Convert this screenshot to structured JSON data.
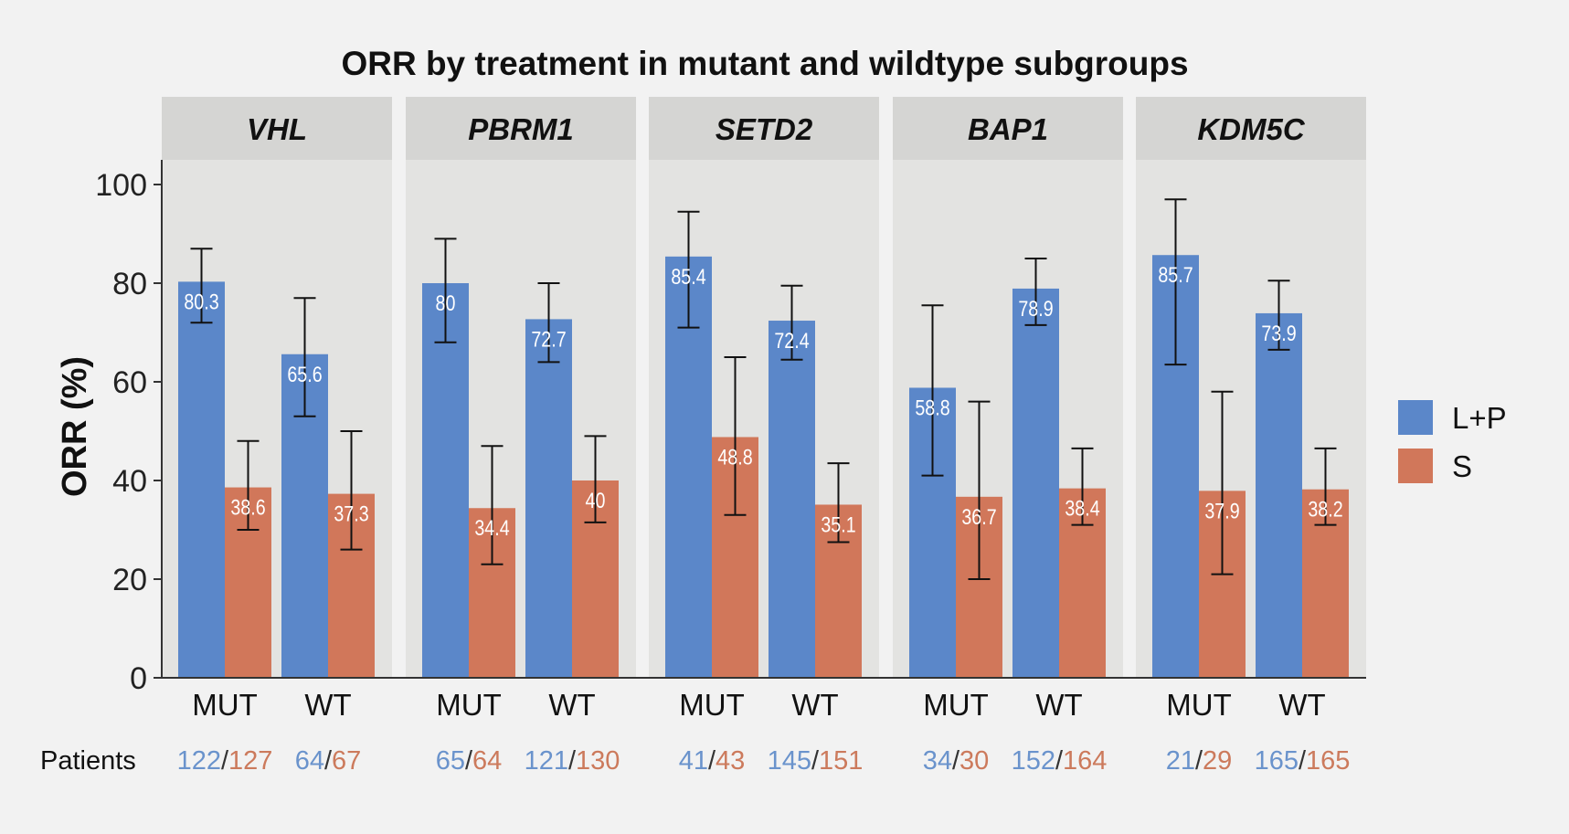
{
  "chart_data": {
    "type": "bar",
    "title": "ORR by treatment in mutant and wildtype subgroups",
    "ylabel": "ORR (%)",
    "xlabel": "",
    "ylim": [
      0,
      100
    ],
    "yticks": [
      0,
      20,
      40,
      60,
      80,
      100
    ],
    "grid": false,
    "legend_position": "right",
    "categories": [
      "MUT",
      "WT"
    ],
    "series_info": [
      {
        "name": "L+P",
        "color": "#5b87c9"
      },
      {
        "name": "S",
        "color": "#d1775a"
      }
    ],
    "patients_label": "Patients",
    "panels": [
      {
        "gene": "VHL",
        "groups": [
          {
            "label": "MUT",
            "lp": 80.3,
            "lp_text": "80.3",
            "lp_err": [
              72,
              87
            ],
            "s": 38.6,
            "s_text": "38.6",
            "s_err": [
              30,
              48
            ],
            "n_lp": "122",
            "n_s": "127"
          },
          {
            "label": "WT",
            "lp": 65.6,
            "lp_text": "65.6",
            "lp_err": [
              53,
              77
            ],
            "s": 37.3,
            "s_text": "37.3",
            "s_err": [
              26,
              50
            ],
            "n_lp": "64",
            "n_s": "67"
          }
        ]
      },
      {
        "gene": "PBRM1",
        "groups": [
          {
            "label": "MUT",
            "lp": 80,
            "lp_text": "80",
            "lp_err": [
              68,
              89
            ],
            "s": 34.4,
            "s_text": "34.4",
            "s_err": [
              23,
              47
            ],
            "n_lp": "65",
            "n_s": "64"
          },
          {
            "label": "WT",
            "lp": 72.7,
            "lp_text": "72.7",
            "lp_err": [
              64,
              80
            ],
            "s": 40,
            "s_text": "40",
            "s_err": [
              31.5,
              49
            ],
            "n_lp": "121",
            "n_s": "130"
          }
        ]
      },
      {
        "gene": "SETD2",
        "groups": [
          {
            "label": "MUT",
            "lp": 85.4,
            "lp_text": "85.4",
            "lp_err": [
              71,
              94.5
            ],
            "s": 48.8,
            "s_text": "48.8",
            "s_err": [
              33,
              65
            ],
            "n_lp": "41",
            "n_s": "43"
          },
          {
            "label": "WT",
            "lp": 72.4,
            "lp_text": "72.4",
            "lp_err": [
              64.5,
              79.5
            ],
            "s": 35.1,
            "s_text": "35.1",
            "s_err": [
              27.5,
              43.5
            ],
            "n_lp": "145",
            "n_s": "151"
          }
        ]
      },
      {
        "gene": "BAP1",
        "groups": [
          {
            "label": "MUT",
            "lp": 58.8,
            "lp_text": "58.8",
            "lp_err": [
              41,
              75.5
            ],
            "s": 36.7,
            "s_text": "36.7",
            "s_err": [
              20,
              56
            ],
            "n_lp": "34",
            "n_s": "30"
          },
          {
            "label": "WT",
            "lp": 78.9,
            "lp_text": "78.9",
            "lp_err": [
              71.5,
              85
            ],
            "s": 38.4,
            "s_text": "38.4",
            "s_err": [
              31,
              46.5
            ],
            "n_lp": "152",
            "n_s": "164"
          }
        ]
      },
      {
        "gene": "KDM5C",
        "groups": [
          {
            "label": "MUT",
            "lp": 85.7,
            "lp_text": "85.7",
            "lp_err": [
              63.5,
              97
            ],
            "s": 37.9,
            "s_text": "37.9",
            "s_err": [
              21,
              58
            ],
            "n_lp": "21",
            "n_s": "29"
          },
          {
            "label": "WT",
            "lp": 73.9,
            "lp_text": "73.9",
            "lp_err": [
              66.5,
              80.5
            ],
            "s": 38.2,
            "s_text": "38.2",
            "s_err": [
              31,
              46.5
            ],
            "n_lp": "165",
            "n_s": "165"
          }
        ]
      }
    ]
  },
  "colors": {
    "lp": "#5b87c9",
    "s": "#d1775a",
    "lp_text": "#6a93cc",
    "s_text": "#cc7a5c",
    "panel_bg": "#e3e3e1",
    "strip_bg": "#d5d5d3"
  }
}
